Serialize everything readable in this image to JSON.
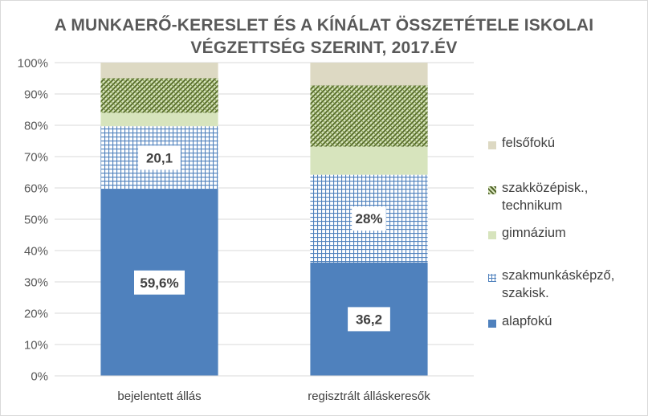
{
  "chart_data": {
    "type": "bar",
    "stacked": true,
    "title_lines": [
      "A MUNKAERŐ-KERESLET ÉS A KÍNÁLAT ÖSSZETÉTELE ISKOLAI",
      "VÉGZETTSÉG SZERINT, 2017.ÉV"
    ],
    "categories": [
      "bejelentett állás",
      "regisztrált álláskeresők"
    ],
    "ylim": [
      0,
      100
    ],
    "yticks": [
      "0%",
      "10%",
      "20%",
      "30%",
      "40%",
      "50%",
      "60%",
      "70%",
      "80%",
      "90%",
      "100%"
    ],
    "grid": true,
    "legend_position": "right",
    "series": [
      {
        "name": "alapfokú",
        "values": [
          59.6,
          36.2
        ],
        "color": "#4f81bd",
        "pattern": "solid",
        "labels": [
          "59,6%",
          "36,2"
        ]
      },
      {
        "name": "szakmunkásképző, szakisk.",
        "values": [
          20.1,
          28.0
        ],
        "color": "#4f81bd",
        "pattern": "grid",
        "labels": [
          "20,1",
          "28%"
        ]
      },
      {
        "name": "gimnázium",
        "values": [
          4.3,
          9.0
        ],
        "color": "#d7e4bd",
        "pattern": "solid",
        "labels": [
          "",
          ""
        ]
      },
      {
        "name": "szakközépisk., technikum",
        "values": [
          11.0,
          19.5
        ],
        "color": "#77933c",
        "pattern": "diagonal",
        "labels": [
          "",
          ""
        ]
      },
      {
        "name": "felsőfokú",
        "values": [
          5.0,
          7.3
        ],
        "color": "#ddd9c3",
        "pattern": "solid",
        "labels": [
          "",
          ""
        ]
      }
    ],
    "legend_order": [
      {
        "name": "felsőfokú",
        "lines": [
          "felsőfokú"
        ]
      },
      {
        "name": "szakközépisk., technikum",
        "lines": [
          "szakközépisk.,",
          "technikum"
        ]
      },
      {
        "name": "gimnázium",
        "lines": [
          "gimnázium"
        ]
      },
      {
        "name": "szakmunkásképző, szakisk.",
        "lines": [
          "szakmunkásképző,",
          "szakisk."
        ]
      },
      {
        "name": "alapfokú",
        "lines": [
          "alapfokú"
        ]
      }
    ]
  }
}
